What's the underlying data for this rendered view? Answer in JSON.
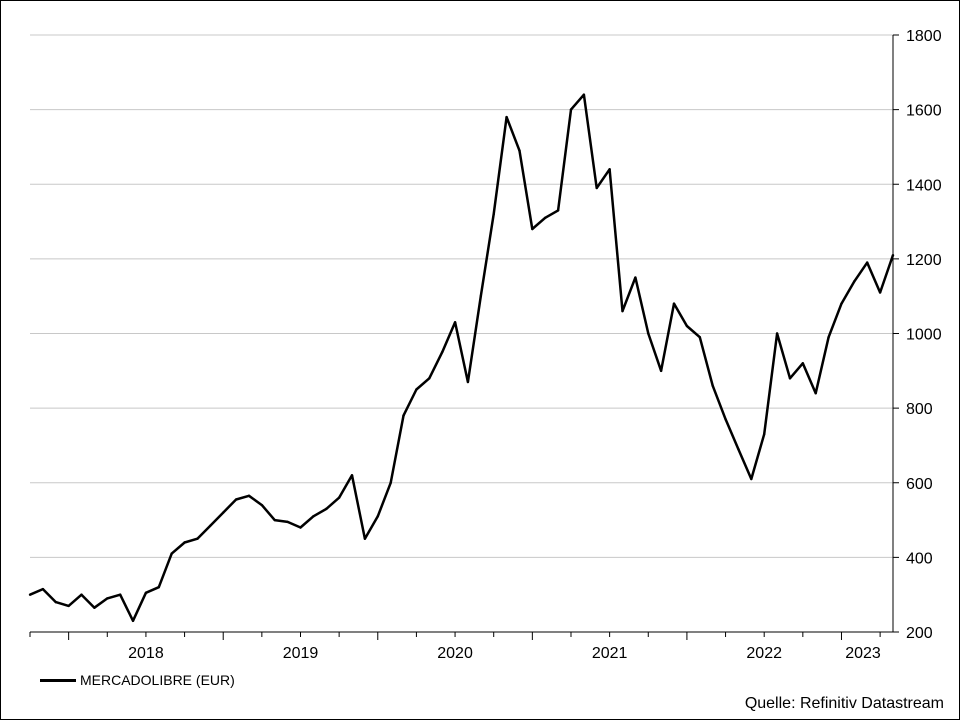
{
  "chart_data": {
    "type": "line",
    "title": "",
    "xlabel": "",
    "ylabel": "",
    "ylim": [
      200,
      1800
    ],
    "y_ticks": [
      200,
      400,
      600,
      800,
      1000,
      1200,
      1400,
      1600,
      1800
    ],
    "y_axis_position": "right",
    "grid": "horizontal",
    "legend_position": "bottom-left",
    "x_ticks": [
      "2018",
      "2019",
      "2020",
      "2021",
      "2022",
      "2023"
    ],
    "xlim": [
      "2017-10",
      "2023-05"
    ],
    "series": [
      {
        "name": "MERCADOLIBRE (EUR)",
        "color": "#000000",
        "x": [
          "2017-10",
          "2017-11",
          "2017-12",
          "2018-01",
          "2018-02",
          "2018-03",
          "2018-04",
          "2018-05",
          "2018-06",
          "2018-07",
          "2018-08",
          "2018-09",
          "2018-10",
          "2018-11",
          "2018-12",
          "2019-01",
          "2019-02",
          "2019-03",
          "2019-04",
          "2019-05",
          "2019-06",
          "2019-07",
          "2019-08",
          "2019-09",
          "2019-10",
          "2019-11",
          "2019-12",
          "2020-01",
          "2020-02",
          "2020-03",
          "2020-04",
          "2020-05",
          "2020-06",
          "2020-07",
          "2020-08",
          "2020-09",
          "2020-10",
          "2020-11",
          "2020-12",
          "2021-01",
          "2021-02",
          "2021-03",
          "2021-04",
          "2021-05",
          "2021-06",
          "2021-07",
          "2021-08",
          "2021-09",
          "2021-10",
          "2021-11",
          "2021-12",
          "2022-01",
          "2022-02",
          "2022-03",
          "2022-04",
          "2022-05",
          "2022-06",
          "2022-07",
          "2022-08",
          "2022-09",
          "2022-10",
          "2022-11",
          "2022-12",
          "2023-01",
          "2023-02",
          "2023-03",
          "2023-04",
          "2023-05"
        ],
        "values": [
          300,
          315,
          280,
          270,
          300,
          265,
          290,
          300,
          230,
          305,
          320,
          410,
          440,
          450,
          485,
          520,
          555,
          565,
          540,
          500,
          495,
          480,
          510,
          530,
          560,
          620,
          450,
          510,
          600,
          780,
          850,
          880,
          950,
          1030,
          870,
          1100,
          1320,
          1580,
          1490,
          1280,
          1310,
          1330,
          1600,
          1640,
          1390,
          1440,
          1060,
          1150,
          1000,
          900,
          1080,
          1020,
          990,
          860,
          770,
          690,
          610,
          730,
          1000,
          880,
          920,
          840,
          990,
          1080,
          1140,
          1190,
          1110,
          1210
        ]
      }
    ]
  },
  "legend": {
    "label": "MERCADOLIBRE (EUR)"
  },
  "source": {
    "text": "Quelle: Refinitiv Datastream"
  }
}
